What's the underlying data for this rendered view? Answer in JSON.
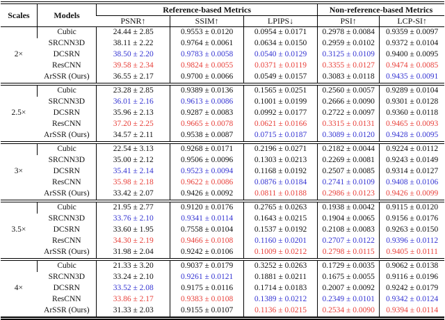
{
  "table": {
    "header": {
      "scales": "Scales",
      "models": "Models",
      "group1": "Reference-based Metrics",
      "group2": "Non-reference-based Metrics",
      "metrics": [
        "PSNR↑",
        "SSIM↑",
        "LPIPS↓",
        "PSI↑",
        "LCP-SI↑"
      ]
    },
    "colors": {
      "text": "#111111",
      "best_red": "#e8403a",
      "second_blue": "#3434d2"
    },
    "sections": [
      {
        "scale": "2×",
        "rows": [
          {
            "model": "Cubic",
            "values": [
              "24.44 ± 2.85",
              "0.9553 ± 0.0120",
              "0.0954 ± 0.0171",
              "0.2978 ± 0.0084",
              "0.9359 ± 0.0097"
            ],
            "colors": [
              "n",
              "n",
              "n",
              "n",
              "n"
            ]
          },
          {
            "model": "SRCNN3D",
            "values": [
              "38.11 ± 2.22",
              "0.9764 ± 0.0061",
              "0.0634 ± 0.0150",
              "0.2959 ± 0.0102",
              "0.9372 ± 0.0104"
            ],
            "colors": [
              "n",
              "n",
              "n",
              "n",
              "n"
            ]
          },
          {
            "model": "DCSRN",
            "values": [
              "38.50 ± 2.20",
              "0.9783 ± 0.0058",
              "0.0540 ± 0.0129",
              "0.3125 ± 0.0109",
              "0.9400 ± 0.0095"
            ],
            "colors": [
              "b",
              "b",
              "b",
              "b",
              "n"
            ]
          },
          {
            "model": "ResCNN",
            "values": [
              "39.58 ± 2.34",
              "0.9824 ± 0.0055",
              "0.0371 ± 0.0119",
              "0.3355 ± 0.0127",
              "0.9474 ± 0.0085"
            ],
            "colors": [
              "r",
              "r",
              "r",
              "r",
              "r"
            ]
          },
          {
            "model": "ArSSR (Ours)",
            "values": [
              "36.55 ± 2.17",
              "0.9700 ± 0.0066",
              "0.0549 ± 0.0157",
              "0.3083 ± 0.0118",
              "0.9435 ± 0.0091"
            ],
            "colors": [
              "n",
              "n",
              "n",
              "n",
              "b"
            ]
          }
        ]
      },
      {
        "scale": "2.5×",
        "rows": [
          {
            "model": "Cubic",
            "values": [
              "23.28 ± 2.85",
              "0.9389 ± 0.0136",
              "0.1565 ± 0.0251",
              "0.2560 ± 0.0057",
              "0.9289 ± 0.0104"
            ],
            "colors": [
              "n",
              "n",
              "n",
              "n",
              "n"
            ]
          },
          {
            "model": "SRCNN3D",
            "values": [
              "36.01 ± 2.16",
              "0.9613 ± 0.0086",
              "0.1001 ± 0.0199",
              "0.2666 ± 0.0090",
              "0.9301 ± 0.0128"
            ],
            "colors": [
              "b",
              "b",
              "n",
              "n",
              "n"
            ]
          },
          {
            "model": "DCSRN",
            "values": [
              "35.96 ± 2.13",
              "0.9287 ± 0.0083",
              "0.0992 ± 0.0177",
              "0.2722 ± 0.0097",
              "0.9360 ± 0.0118"
            ],
            "colors": [
              "n",
              "n",
              "n",
              "n",
              "n"
            ]
          },
          {
            "model": "ResCNN",
            "values": [
              "37.20 ± 2.25",
              "0.9665 ± 0.0078",
              "0.0621 ± 0.0166",
              "0.3315 ± 0.0131",
              "0.9465 ± 0.0093"
            ],
            "colors": [
              "r",
              "r",
              "r",
              "r",
              "r"
            ]
          },
          {
            "model": "ArSSR (Ours)",
            "values": [
              "34.57 ± 2.11",
              "0.9538 ± 0.0087",
              "0.0715 ± 0.0187",
              "0.3089 ± 0.0120",
              "0.9428 ± 0.0095"
            ],
            "colors": [
              "n",
              "n",
              "b",
              "b",
              "b"
            ]
          }
        ]
      },
      {
        "scale": "3×",
        "rows": [
          {
            "model": "Cubic",
            "values": [
              "22.54 ± 3.13",
              "0.9268 ± 0.0171",
              "0.2196 ± 0.0271",
              "0.2182 ± 0.0044",
              "0.9224 ± 0.0112"
            ],
            "colors": [
              "n",
              "n",
              "n",
              "n",
              "n"
            ]
          },
          {
            "model": "SRCNN3D",
            "values": [
              "35.00 ± 2.12",
              "0.9506 ± 0.0096",
              "0.1303 ± 0.0213",
              "0.2269 ± 0.0081",
              "0.9243 ± 0.0149"
            ],
            "colors": [
              "n",
              "n",
              "n",
              "n",
              "n"
            ]
          },
          {
            "model": "DCSRN",
            "values": [
              "35.41 ± 2.14",
              "0.9523 ± 0.0094",
              "0.1168 ± 0.0192",
              "0.2507 ± 0.0085",
              "0.9314 ± 0.0127"
            ],
            "colors": [
              "b",
              "b",
              "n",
              "n",
              "n"
            ]
          },
          {
            "model": "ResCNN",
            "values": [
              "35.98 ± 2.18",
              "0.9622 ± 0.0086",
              "0.0876 ± 0.0184",
              "0.2741 ± 0.0109",
              "0.9408 ± 0.0106"
            ],
            "colors": [
              "r",
              "r",
              "b",
              "b",
              "b"
            ]
          },
          {
            "model": "ArSSR (Ours)",
            "values": [
              "33.42 ± 2.07",
              "0.9426 ± 0.0092",
              "0.0811 ± 0.0188",
              "0.2986 ± 0.0123",
              "0.9426 ± 0.0099"
            ],
            "colors": [
              "n",
              "n",
              "r",
              "r",
              "r"
            ]
          }
        ]
      },
      {
        "scale": "3.5×",
        "rows": [
          {
            "model": "Cubic",
            "values": [
              "21.95 ± 2.77",
              "0.9120 ± 0.0176",
              "0.2765 ± 0.0263",
              "0.1938 ± 0.0042",
              "0.9115 ± 0.0120"
            ],
            "colors": [
              "n",
              "n",
              "n",
              "n",
              "n"
            ]
          },
          {
            "model": "SRCNN3D",
            "values": [
              "33.76 ± 2.10",
              "0.9341 ± 0.0114",
              "0.1643 ± 0.0215",
              "0.1904 ± 0.0065",
              "0.9156 ± 0.0176"
            ],
            "colors": [
              "b",
              "b",
              "n",
              "n",
              "n"
            ]
          },
          {
            "model": "DCSRN",
            "values": [
              "33.60 ± 1.95",
              "0.7558 ± 0.0104",
              "0.1537 ± 0.0192",
              "0.2108 ± 0.0083",
              "0.9263 ± 0.0150"
            ],
            "colors": [
              "n",
              "n",
              "n",
              "n",
              "n"
            ]
          },
          {
            "model": "ResCNN",
            "values": [
              "34.30 ± 2.19",
              "0.9466 ± 0.0108",
              "0.1160 ± 0.0201",
              "0.2707 ± 0.0122",
              "0.9396 ± 0.0112"
            ],
            "colors": [
              "r",
              "r",
              "b",
              "b",
              "b"
            ]
          },
          {
            "model": "ArSSR (Ours)",
            "values": [
              "31.98 ± 2.04",
              "0.9242 ± 0.0106",
              "0.1009 ± 0.0212",
              "0.2798 ± 0.0115",
              "0.9405 ± 0.0111"
            ],
            "colors": [
              "n",
              "n",
              "r",
              "r",
              "r"
            ]
          }
        ]
      },
      {
        "scale": "4×",
        "rows": [
          {
            "model": "Cubic",
            "values": [
              "21.33 ± 3.20",
              "0.9037 ± 0.0179",
              "0.3252 ± 0.0263",
              "0.1729 ± 0.0035",
              "0.9062 ± 0.0138"
            ],
            "colors": [
              "n",
              "n",
              "n",
              "n",
              "n"
            ]
          },
          {
            "model": "SRCNN3D",
            "values": [
              "33.24 ± 2.10",
              "0.9261 ± 0.0121",
              "0.1881 ± 0.0211",
              "0.1675 ± 0.0055",
              "0.9116 ± 0.0196"
            ],
            "colors": [
              "n",
              "b",
              "n",
              "n",
              "n"
            ]
          },
          {
            "model": "DCSRN",
            "values": [
              "33.52 ± 2.08",
              "0.9175 ± 0.0116",
              "0.1714 ± 0.0183",
              "0.2007 ± 0.0092",
              "0.9242 ± 0.0179"
            ],
            "colors": [
              "b",
              "n",
              "n",
              "n",
              "n"
            ]
          },
          {
            "model": "ResCNN",
            "values": [
              "33.86 ± 2.17",
              "0.9383 ± 0.0108",
              "0.1389 ± 0.0212",
              "0.2349 ± 0.0101",
              "0.9342 ± 0.0124"
            ],
            "colors": [
              "r",
              "r",
              "b",
              "b",
              "b"
            ]
          },
          {
            "model": "ArSSR (Ours)",
            "values": [
              "31.33 ± 2.03",
              "0.9155 ± 0.0107",
              "0.1136 ± 0.0215",
              "0.2534 ± 0.0090",
              "0.9394 ± 0.0114"
            ],
            "colors": [
              "n",
              "n",
              "r",
              "r",
              "r"
            ]
          }
        ]
      }
    ]
  }
}
